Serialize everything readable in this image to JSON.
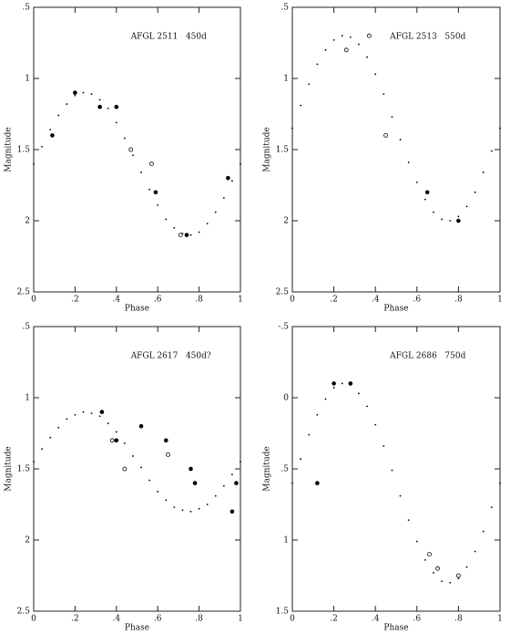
{
  "chart_data": [
    {
      "type": "scatter",
      "title": "AFGL 2511   450d",
      "xlabel": "Phase",
      "ylabel": "Magnitude",
      "xlim": [
        0,
        1
      ],
      "ylim": [
        0.5,
        2.5
      ],
      "y_inverted": true,
      "xticks": [
        0,
        {
          "value": 0.2,
          "label": ".2"
        },
        {
          "value": 0.4,
          "label": ".4"
        },
        {
          "value": 0.6,
          "label": ".6"
        },
        {
          "value": 0.8,
          "label": ".8"
        },
        1
      ],
      "yticks": [
        {
          "value": 0.5,
          "label": ".5"
        },
        1,
        1.5,
        2,
        2.5
      ],
      "series": [
        {
          "marker": "dot",
          "color": "#000000",
          "x": [
            0,
            0.04,
            0.08,
            0.12,
            0.16,
            0.2,
            0.24,
            0.28,
            0.32,
            0.36,
            0.4,
            0.44,
            0.48,
            0.52,
            0.56,
            0.6,
            0.64,
            0.68,
            0.72,
            0.76,
            0.8,
            0.84,
            0.88,
            0.92,
            0.96,
            1
          ],
          "values": [
            1.6,
            1.48,
            1.36,
            1.26,
            1.18,
            1.12,
            1.1,
            1.11,
            1.15,
            1.21,
            1.31,
            1.42,
            1.54,
            1.66,
            1.78,
            1.89,
            1.99,
            2.05,
            2.09,
            2.1,
            2.08,
            2.02,
            1.94,
            1.84,
            1.72,
            1.6
          ]
        },
        {
          "marker": "filled",
          "color": "#000000",
          "x": [
            0.09,
            0.2,
            0.32,
            0.4,
            0.59,
            0.74,
            0.94
          ],
          "values": [
            1.4,
            1.1,
            1.2,
            1.2,
            1.8,
            2.1,
            1.7
          ]
        },
        {
          "marker": "open",
          "color": "#000000",
          "x": [
            0.47,
            0.57,
            0.71
          ],
          "values": [
            1.5,
            1.6,
            2.1
          ]
        }
      ]
    },
    {
      "type": "scatter",
      "title": "AFGL 2513   550d",
      "xlabel": "Phase",
      "ylabel": "Magnitude",
      "xlim": [
        0,
        1
      ],
      "ylim": [
        0.5,
        2.5
      ],
      "y_inverted": true,
      "xticks": [
        0,
        {
          "value": 0.2,
          "label": ".2"
        },
        {
          "value": 0.4,
          "label": ".4"
        },
        {
          "value": 0.6,
          "label": ".6"
        },
        {
          "value": 0.8,
          "label": ".8"
        },
        1
      ],
      "yticks": [
        {
          "value": 0.5,
          "label": ".5"
        },
        1,
        1.5,
        2,
        2.5
      ],
      "series": [
        {
          "marker": "dot",
          "color": "#000000",
          "x": [
            0,
            0.04,
            0.08,
            0.12,
            0.16,
            0.2,
            0.24,
            0.28,
            0.32,
            0.36,
            0.4,
            0.44,
            0.48,
            0.52,
            0.56,
            0.6,
            0.64,
            0.68,
            0.72,
            0.76,
            0.8,
            0.84,
            0.88,
            0.92,
            0.96,
            1
          ],
          "values": [
            1.35,
            1.19,
            1.04,
            0.9,
            0.8,
            0.73,
            0.7,
            0.71,
            0.76,
            0.85,
            0.97,
            1.11,
            1.27,
            1.43,
            1.59,
            1.73,
            1.85,
            1.94,
            1.99,
            2.0,
            1.97,
            1.9,
            1.8,
            1.66,
            1.51,
            1.35
          ]
        },
        {
          "marker": "filled",
          "color": "#000000",
          "x": [
            0.65,
            0.8
          ],
          "values": [
            1.8,
            2.0
          ]
        },
        {
          "marker": "open",
          "color": "#000000",
          "x": [
            0.26,
            0.37,
            0.45
          ],
          "values": [
            0.8,
            0.7,
            1.4
          ]
        }
      ]
    },
    {
      "type": "scatter",
      "title": "AFGL 2617   450d?",
      "xlabel": "Phase",
      "ylabel": "Magnitude",
      "xlim": [
        0,
        1
      ],
      "ylim": [
        0.5,
        2.5
      ],
      "y_inverted": true,
      "xticks": [
        0,
        {
          "value": 0.2,
          "label": ".2"
        },
        {
          "value": 0.4,
          "label": ".4"
        },
        {
          "value": 0.6,
          "label": ".6"
        },
        {
          "value": 0.8,
          "label": ".8"
        },
        1
      ],
      "yticks": [
        {
          "value": 0.5,
          "label": ".5"
        },
        1,
        1.5,
        2,
        2.5
      ],
      "series": [
        {
          "marker": "dot",
          "color": "#000000",
          "x": [
            0,
            0.04,
            0.08,
            0.12,
            0.16,
            0.2,
            0.24,
            0.28,
            0.32,
            0.36,
            0.4,
            0.44,
            0.48,
            0.52,
            0.56,
            0.6,
            0.64,
            0.68,
            0.72,
            0.76,
            0.8,
            0.84,
            0.88,
            0.92,
            0.96,
            1
          ],
          "values": [
            1.45,
            1.36,
            1.28,
            1.21,
            1.15,
            1.12,
            1.1,
            1.11,
            1.13,
            1.18,
            1.24,
            1.32,
            1.41,
            1.49,
            1.58,
            1.66,
            1.72,
            1.77,
            1.79,
            1.8,
            1.78,
            1.75,
            1.69,
            1.62,
            1.54,
            1.45
          ]
        },
        {
          "marker": "filled",
          "color": "#000000",
          "x": [
            0.33,
            0.4,
            0.52,
            0.64,
            0.76,
            0.78,
            0.96,
            0.98
          ],
          "values": [
            1.1,
            1.3,
            1.2,
            1.3,
            1.5,
            1.6,
            1.8,
            1.6
          ]
        },
        {
          "marker": "open",
          "color": "#000000",
          "x": [
            0.38,
            0.44,
            0.65
          ],
          "values": [
            1.3,
            1.5,
            1.4
          ]
        }
      ]
    },
    {
      "type": "scatter",
      "title": "AFGL 2686   750d",
      "xlabel": "Phase",
      "ylabel": "Magnitude",
      "xlim": [
        0,
        1
      ],
      "ylim": [
        -0.5,
        1.5
      ],
      "y_inverted": true,
      "xticks": [
        0,
        {
          "value": 0.2,
          "label": ".2"
        },
        {
          "value": 0.4,
          "label": ".4"
        },
        {
          "value": 0.6,
          "label": ".6"
        },
        {
          "value": 0.8,
          "label": ".8"
        },
        1
      ],
      "yticks": [
        {
          "value": -0.5,
          "label": "-.5"
        },
        0,
        {
          "value": 0.5,
          "label": ".5"
        },
        1,
        1.5
      ],
      "series": [
        {
          "marker": "dot",
          "color": "#000000",
          "x": [
            0,
            0.04,
            0.08,
            0.12,
            0.16,
            0.2,
            0.24,
            0.28,
            0.32,
            0.36,
            0.4,
            0.44,
            0.48,
            0.52,
            0.56,
            0.6,
            0.64,
            0.68,
            0.72,
            0.76,
            0.8,
            0.84,
            0.88,
            0.92,
            0.96,
            1
          ],
          "values": [
            0.6,
            0.43,
            0.26,
            0.12,
            0.01,
            -0.07,
            -0.1,
            -0.09,
            -0.03,
            0.06,
            0.19,
            0.34,
            0.51,
            0.69,
            0.86,
            1.01,
            1.14,
            1.23,
            1.29,
            1.3,
            1.27,
            1.19,
            1.08,
            0.94,
            0.77,
            0.6
          ]
        },
        {
          "marker": "filled",
          "color": "#000000",
          "x": [
            0.12,
            0.2,
            0.28
          ],
          "values": [
            0.6,
            -0.1,
            -0.1
          ]
        },
        {
          "marker": "open",
          "color": "#000000",
          "x": [
            0.66,
            0.7,
            0.8
          ],
          "values": [
            1.1,
            1.2,
            1.25
          ]
        }
      ]
    }
  ]
}
